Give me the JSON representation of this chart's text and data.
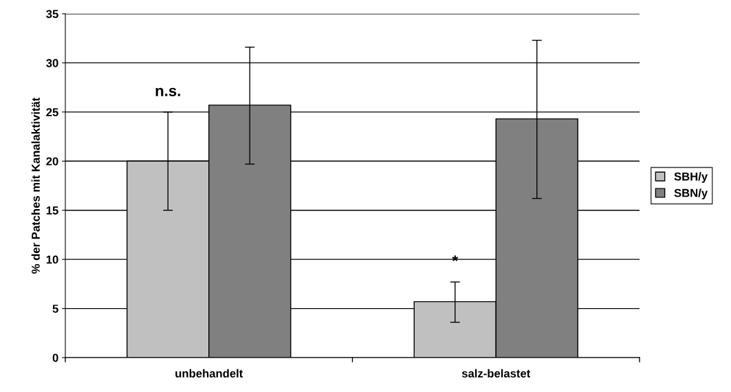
{
  "chart_data": {
    "type": "bar",
    "ylabel": "% der Patches mit Kanalaktivität",
    "categories": [
      "unbehandelt",
      "salz-belastet"
    ],
    "series": [
      {
        "name": "SBH/y",
        "color": "#c0c0c0",
        "values": [
          20,
          5.7
        ],
        "errors": [
          [
            15,
            25
          ],
          [
            3.6,
            7.7
          ]
        ]
      },
      {
        "name": "SBN/y",
        "color": "#808080",
        "values": [
          25.7,
          24.3
        ],
        "errors": [
          [
            19.7,
            31.6
          ],
          [
            16.2,
            32.3
          ]
        ]
      }
    ],
    "ylim": [
      0,
      35
    ],
    "yticks": [
      0,
      5,
      10,
      15,
      20,
      25,
      30,
      35
    ],
    "grid": "y",
    "legend": "right",
    "annotations": [
      "n.s.",
      "*"
    ]
  }
}
